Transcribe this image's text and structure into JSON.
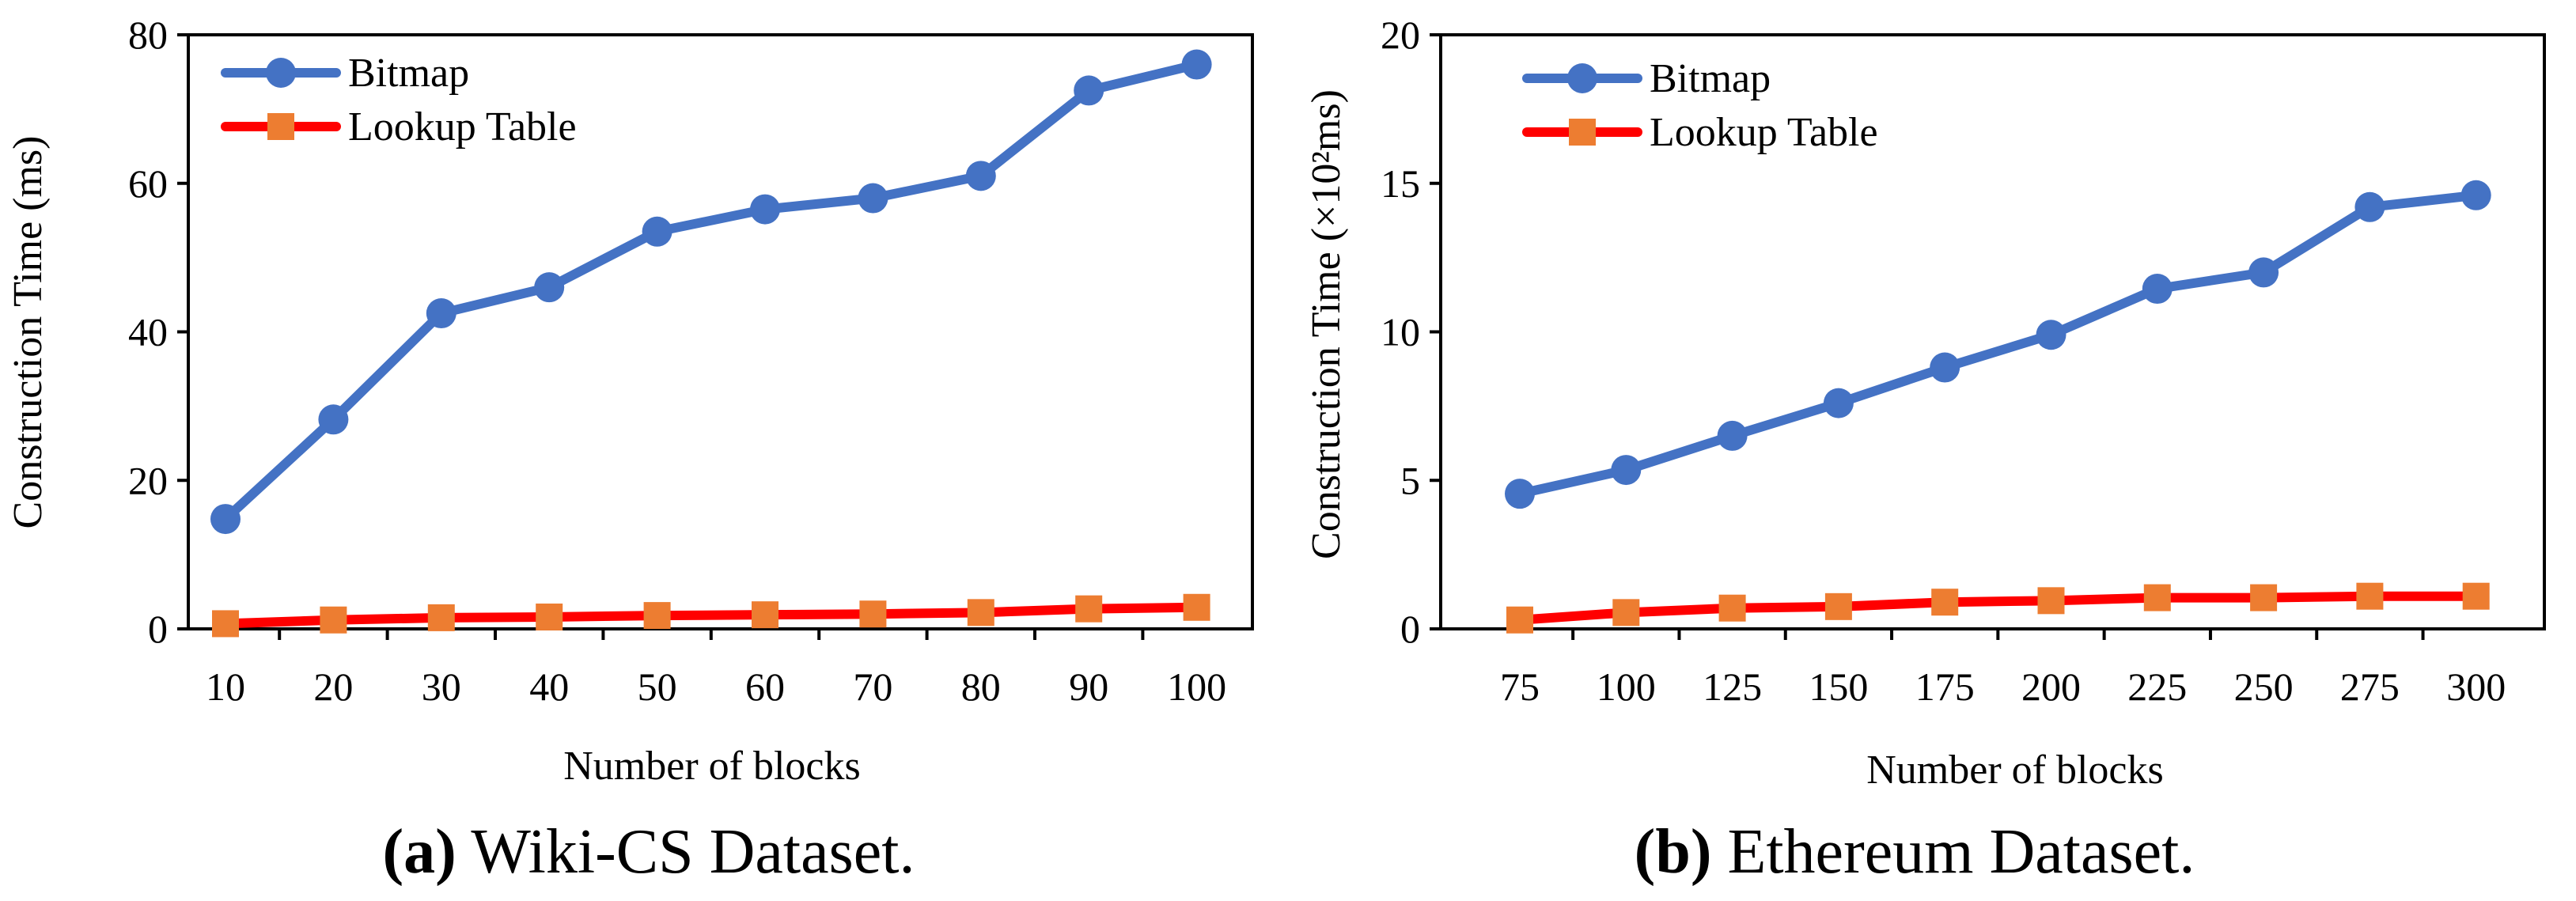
{
  "chart_data": [
    {
      "id": "a",
      "type": "line",
      "categories": [
        "10",
        "20",
        "30",
        "40",
        "50",
        "60",
        "70",
        "80",
        "90",
        "100"
      ],
      "series": [
        {
          "name": "Bitmap",
          "color": "#4472C4",
          "marker": "circle",
          "values": [
            14.8,
            28.2,
            42.5,
            46.0,
            53.5,
            56.5,
            58.0,
            61.0,
            72.5,
            76.0
          ]
        },
        {
          "name": "Lookup Table",
          "color": "#FF0000",
          "marker_color": "#ED7D31",
          "marker": "square",
          "values": [
            0.7,
            1.2,
            1.5,
            1.6,
            1.8,
            1.9,
            2.0,
            2.2,
            2.7,
            2.9
          ]
        }
      ],
      "xlabel": "Number of blocks",
      "ylabel": "Construction Time (ms)",
      "ylim": [
        0,
        80
      ],
      "yticks": [
        "0",
        "20",
        "40",
        "60",
        "80"
      ],
      "legend": "top-left",
      "caption_label": "(a)",
      "caption_text": "Wiki-CS Dataset."
    },
    {
      "id": "b",
      "type": "line",
      "categories": [
        "75",
        "100",
        "125",
        "150",
        "175",
        "200",
        "225",
        "250",
        "275",
        "300"
      ],
      "series": [
        {
          "name": "Bitmap",
          "color": "#4472C4",
          "marker": "circle",
          "values": [
            4.55,
            5.35,
            6.5,
            7.6,
            8.8,
            9.9,
            11.45,
            12.0,
            14.2,
            14.6
          ]
        },
        {
          "name": "Lookup Table",
          "color": "#FF0000",
          "marker_color": "#ED7D31",
          "marker": "square",
          "values": [
            0.3,
            0.55,
            0.7,
            0.75,
            0.9,
            0.95,
            1.05,
            1.05,
            1.1,
            1.1
          ]
        }
      ],
      "xlabel": "Number of blocks",
      "ylabel": "Construction Time (×10²ms)",
      "ylim": [
        0,
        20
      ],
      "yticks": [
        "0",
        "5",
        "10",
        "15",
        "20"
      ],
      "legend": "top-left",
      "caption_label": "(b)",
      "caption_text": "Ethereum Dataset."
    }
  ]
}
